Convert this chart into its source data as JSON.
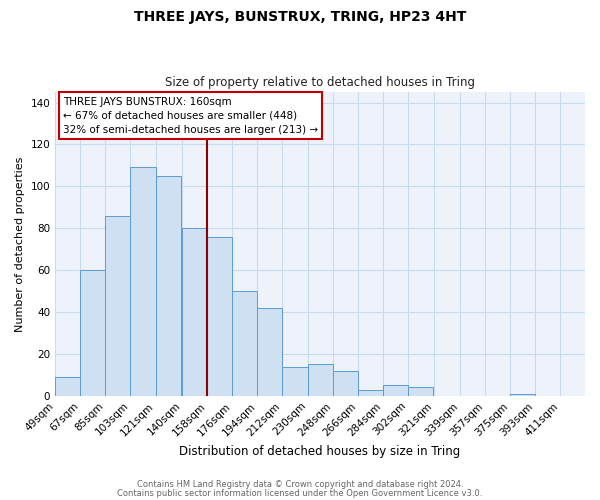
{
  "title": "THREE JAYS, BUNSTRUX, TRING, HP23 4HT",
  "subtitle": "Size of property relative to detached houses in Tring",
  "xlabel": "Distribution of detached houses by size in Tring",
  "ylabel": "Number of detached properties",
  "bar_labels": [
    "49sqm",
    "67sqm",
    "85sqm",
    "103sqm",
    "121sqm",
    "140sqm",
    "158sqm",
    "176sqm",
    "194sqm",
    "212sqm",
    "230sqm",
    "248sqm",
    "266sqm",
    "284sqm",
    "302sqm",
    "321sqm",
    "339sqm",
    "357sqm",
    "375sqm",
    "393sqm",
    "411sqm"
  ],
  "bar_values": [
    9,
    60,
    86,
    109,
    105,
    80,
    76,
    50,
    42,
    14,
    15,
    12,
    3,
    5,
    4,
    0,
    0,
    0,
    1,
    0,
    0
  ],
  "bar_color": "#cfe0f3",
  "bar_edge_color": "#5b9bd5",
  "grid_color": "#c8daf0",
  "background_color": "#eef3fb",
  "property_label": "THREE JAYS BUNSTRUX: 160sqm",
  "pct_smaller": 67,
  "n_smaller": 448,
  "pct_larger": 32,
  "n_larger": 213,
  "vline_color": "#8b0000",
  "annotation_box_edge": "#c00000",
  "ylim": [
    0,
    145
  ],
  "yticks": [
    0,
    20,
    40,
    60,
    80,
    100,
    120,
    140
  ],
  "footer_line1": "Contains HM Land Registry data © Crown copyright and database right 2024.",
  "footer_line2": "Contains public sector information licensed under the Open Government Licence v3.0.",
  "bin_width": 18,
  "vline_x": 158
}
